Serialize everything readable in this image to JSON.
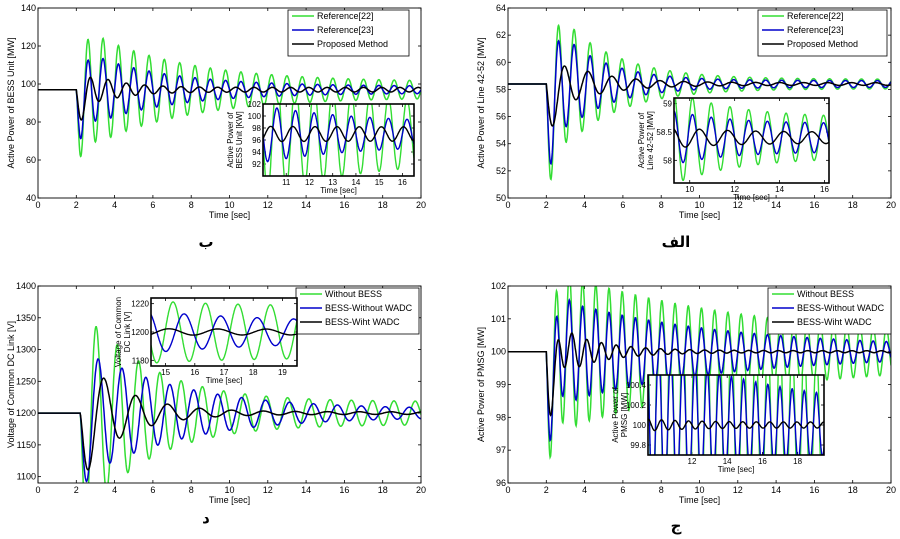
{
  "chart_data": [
    {
      "id": "p1",
      "caption": "ب",
      "type": "line",
      "ylabel": "Active Power of BESS Unit [MW]",
      "xlabel": "Time [sec]",
      "xlim": [
        0,
        20
      ],
      "ylim": [
        40,
        140
      ],
      "x_ticks": [
        "0",
        "2",
        "4",
        "6",
        "8",
        "10",
        "12",
        "14",
        "16",
        "18",
        "20"
      ],
      "y_ticks": [
        "40",
        "60",
        "80",
        "100",
        "120",
        "140"
      ],
      "legend_position": "top-right",
      "series": [
        {
          "name": "Reference[22]",
          "color": "#33dd33",
          "base": 97,
          "t0": 2.0,
          "dip": -29,
          "amp": 30,
          "freq": 1.25,
          "decay": 0.2,
          "floor": 4.0
        },
        {
          "name": "Reference[23]",
          "color": "#0000cc",
          "base": 97,
          "t0": 2.0,
          "dip": -27,
          "amp": 20,
          "freq": 1.25,
          "decay": 0.24,
          "floor": 1.8
        },
        {
          "name": "Proposed Method",
          "color": "#000000",
          "base": 97,
          "t0": 2.0,
          "dip": -22,
          "amp": 11,
          "freq": 1.05,
          "decay": 0.6,
          "floor": 1.2
        }
      ],
      "inset": {
        "ylabel": "Active Power of BESS Unit [KW]",
        "xlabel": "Time [sec]",
        "xlim": [
          10,
          16.5
        ],
        "ylim": [
          90,
          102
        ],
        "x_ticks": [
          "11",
          "12",
          "13",
          "14",
          "15",
          "16"
        ],
        "y_ticks": [
          "92",
          "94",
          "96",
          "98",
          "100",
          "102"
        ]
      }
    },
    {
      "id": "p2",
      "caption": "الف",
      "type": "line",
      "ylabel": "Active Power of Line 42-52 [MW]",
      "xlabel": "Time [sec]",
      "xlim": [
        0,
        20
      ],
      "ylim": [
        50,
        64
      ],
      "x_ticks": [
        "0",
        "2",
        "4",
        "6",
        "8",
        "10",
        "12",
        "14",
        "16",
        "18",
        "20"
      ],
      "y_ticks": [
        "50",
        "52",
        "54",
        "56",
        "58",
        "60",
        "62",
        "64"
      ],
      "legend_position": "top-right",
      "series": [
        {
          "name": "Reference[22]",
          "color": "#33dd33",
          "base": 58.4,
          "t0": 2.0,
          "dip": -7,
          "amp": 6,
          "freq": 1.2,
          "decay": 0.35,
          "floor": 0.35
        },
        {
          "name": "Reference[23]",
          "color": "#0000cc",
          "base": 58.4,
          "t0": 2.0,
          "dip": -6.5,
          "amp": 4.8,
          "freq": 1.2,
          "decay": 0.42,
          "floor": 0.25
        },
        {
          "name": "Proposed Method",
          "color": "#000000",
          "base": 58.4,
          "t0": 2.0,
          "dip": -5,
          "amp": 2.2,
          "freq": 0.8,
          "decay": 0.45,
          "floor": 0.1
        }
      ],
      "inset": {
        "ylabel": "Active Power of Line 42-52 [MW]",
        "xlabel": "Time [sec]",
        "xlim": [
          9.3,
          16.2
        ],
        "ylim": [
          57.6,
          59.1
        ],
        "x_ticks": [
          "10",
          "12",
          "14",
          "16"
        ],
        "y_ticks": [
          "58",
          "58.5",
          "59"
        ]
      }
    },
    {
      "id": "p3",
      "caption": "د",
      "type": "line",
      "ylabel": "Voltage of Common DC Link [V]",
      "xlabel": "Time [sec]",
      "xlim": [
        0,
        20
      ],
      "ylim": [
        1090,
        1400
      ],
      "x_ticks": [
        "0",
        "2",
        "4",
        "6",
        "8",
        "10",
        "12",
        "14",
        "16",
        "18",
        "20"
      ],
      "y_ticks": [
        "1100",
        "1150",
        "1200",
        "1250",
        "1300",
        "1350",
        "1400"
      ],
      "legend_position": "top-right",
      "series": [
        {
          "name": "Without BESS",
          "color": "#33dd33",
          "base": 1200,
          "t0": 2.2,
          "dip": -95,
          "amp": 160,
          "freq": 0.9,
          "decay": 0.3,
          "floor": 18
        },
        {
          "name": "BESS-Without WADC",
          "color": "#0000cc",
          "base": 1200,
          "t0": 2.2,
          "dip": -80,
          "amp": 100,
          "freq": 0.8,
          "decay": 0.2,
          "floor": 6
        },
        {
          "name": "BESS-Wiht WADC",
          "color": "#000000",
          "base": 1200,
          "t0": 2.2,
          "dip": -75,
          "amp": 95,
          "freq": 0.6,
          "decay": 0.45,
          "floor": 2
        }
      ],
      "inset": {
        "ylabel": "Voltage of Common DC Link [V]",
        "xlabel": "Time [sec]",
        "xlim": [
          14.5,
          19.5
        ],
        "ylim": [
          1176,
          1224
        ],
        "x_ticks": [
          "15",
          "16",
          "17",
          "18",
          "19"
        ],
        "y_ticks": [
          "1180",
          "1200",
          "1220"
        ]
      }
    },
    {
      "id": "p4",
      "caption": "ج",
      "type": "line",
      "ylabel": "Active Power of PMSG [MW]",
      "xlabel": "Time [sec]",
      "xlim": [
        0,
        20
      ],
      "ylim": [
        96,
        102
      ],
      "x_ticks": [
        "0",
        "2",
        "4",
        "6",
        "8",
        "10",
        "12",
        "14",
        "16",
        "18",
        "20"
      ],
      "y_ticks": [
        "96",
        "97",
        "98",
        "99",
        "100",
        "101",
        "102"
      ],
      "legend_position": "top-right",
      "series": [
        {
          "name": "Without BESS",
          "color": "#33dd33",
          "base": 100,
          "t0": 2.0,
          "dip": -3.5,
          "amp": 2.2,
          "freq": 1.45,
          "decay": 0.1,
          "floor": 0.35
        },
        {
          "name": "BESS-Without WADC",
          "color": "#0000cc",
          "base": 100,
          "t0": 2.0,
          "dip": -3.6,
          "amp": 1.6,
          "freq": 1.45,
          "decay": 0.12,
          "floor": 0.12
        },
        {
          "name": "BESS-Wiht WADC",
          "color": "#000000",
          "base": 100,
          "t0": 2.0,
          "dip": -3.3,
          "amp": 0.9,
          "freq": 1.3,
          "decay": 0.45,
          "floor": 0.03
        }
      ],
      "inset": {
        "ylabel": "Active Power of PMSG [MW]",
        "xlabel": "Time [sec]",
        "xlim": [
          9.5,
          19.5
        ],
        "ylim": [
          99.7,
          100.5
        ],
        "x_ticks": [
          "12",
          "14",
          "16",
          "18"
        ],
        "y_ticks": [
          "99.8",
          "100",
          "100.2",
          "100.4"
        ]
      }
    }
  ]
}
